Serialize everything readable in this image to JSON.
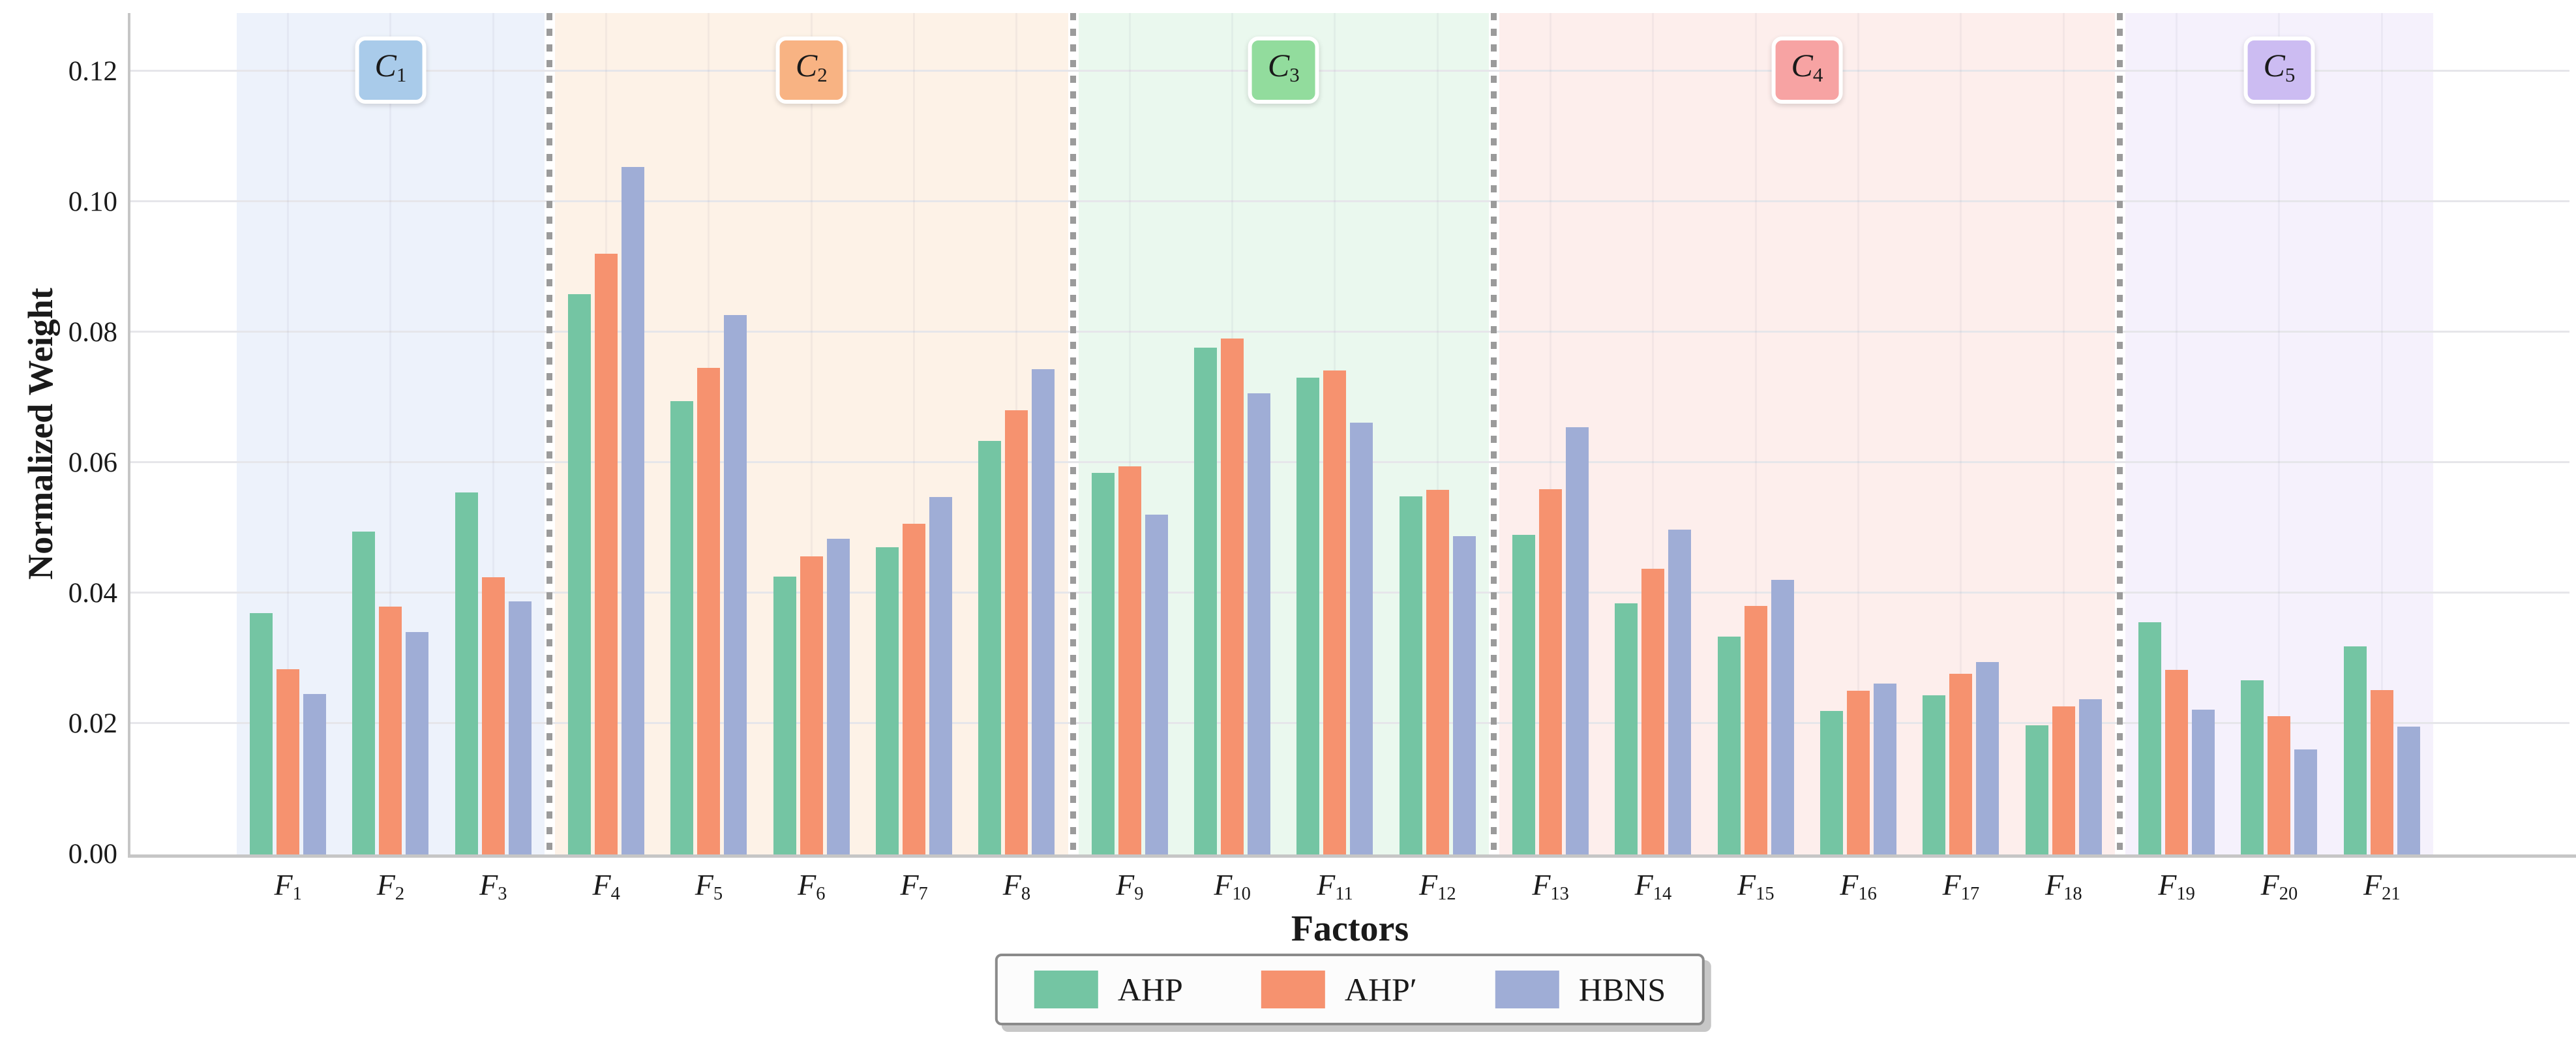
{
  "chart_data": {
    "type": "bar",
    "title": "",
    "xlabel": "Factors",
    "ylabel": "Normalized Weight",
    "ylim": [
      0,
      0.129
    ],
    "yticks": [
      0,
      0.02,
      0.04,
      0.06,
      0.08,
      0.1,
      0.12
    ],
    "grid": true,
    "legend_position": "bottom-center",
    "series": [
      {
        "name": "AHP",
        "color": "#74c5a3"
      },
      {
        "name": "AHP′",
        "color": "#f6926f"
      },
      {
        "name": "HBNS",
        "color": "#9fadd6"
      }
    ],
    "categories": [
      {
        "label": "C1",
        "band_color": "#edf2fb",
        "box_color": "#a9cbea",
        "factors": [
          {
            "label": "F1",
            "values": [
              0.037,
              0.0284,
              0.0246
            ]
          },
          {
            "label": "F2",
            "values": [
              0.0495,
              0.038,
              0.0341
            ]
          },
          {
            "label": "F3",
            "values": [
              0.0555,
              0.0425,
              0.0388
            ]
          }
        ]
      },
      {
        "label": "C2",
        "band_color": "#fdf2e7",
        "box_color": "#f8b383",
        "factors": [
          {
            "label": "F4",
            "values": [
              0.0859,
              0.0921,
              0.1054
            ]
          },
          {
            "label": "F5",
            "values": [
              0.0695,
              0.0746,
              0.0827
            ]
          },
          {
            "label": "F6",
            "values": [
              0.0426,
              0.0457,
              0.0484
            ]
          },
          {
            "label": "F7",
            "values": [
              0.0471,
              0.0507,
              0.0548
            ]
          },
          {
            "label": "F8",
            "values": [
              0.0634,
              0.0681,
              0.0744
            ]
          }
        ]
      },
      {
        "label": "C3",
        "band_color": "#eaf8ee",
        "box_color": "#92dc9d",
        "factors": [
          {
            "label": "F9",
            "values": [
              0.0585,
              0.0595,
              0.0521
            ]
          },
          {
            "label": "F10",
            "values": [
              0.0777,
              0.0791,
              0.0707
            ]
          },
          {
            "label": "F11",
            "values": [
              0.0731,
              0.0742,
              0.0662
            ]
          },
          {
            "label": "F12",
            "values": [
              0.0549,
              0.0559,
              0.0488
            ]
          }
        ]
      },
      {
        "label": "C4",
        "band_color": "#fdeeec",
        "box_color": "#f7a3a3",
        "factors": [
          {
            "label": "F13",
            "values": [
              0.049,
              0.056,
              0.0655
            ]
          },
          {
            "label": "F14",
            "values": [
              0.0385,
              0.0438,
              0.0498
            ]
          },
          {
            "label": "F15",
            "values": [
              0.0334,
              0.0381,
              0.0421
            ]
          },
          {
            "label": "F16",
            "values": [
              0.022,
              0.0251,
              0.0262
            ]
          },
          {
            "label": "F17",
            "values": [
              0.0244,
              0.0277,
              0.0295
            ]
          },
          {
            "label": "F18",
            "values": [
              0.0198,
              0.0227,
              0.0238
            ]
          }
        ]
      },
      {
        "label": "C5",
        "band_color": "#f5f1fc",
        "box_color": "#ccbcf2",
        "factors": [
          {
            "label": "F19",
            "values": [
              0.0356,
              0.0283,
              0.0222
            ]
          },
          {
            "label": "F20",
            "values": [
              0.0267,
              0.0212,
              0.0161
            ]
          },
          {
            "label": "F21",
            "values": [
              0.0319,
              0.0252,
              0.0196
            ]
          }
        ]
      }
    ]
  }
}
